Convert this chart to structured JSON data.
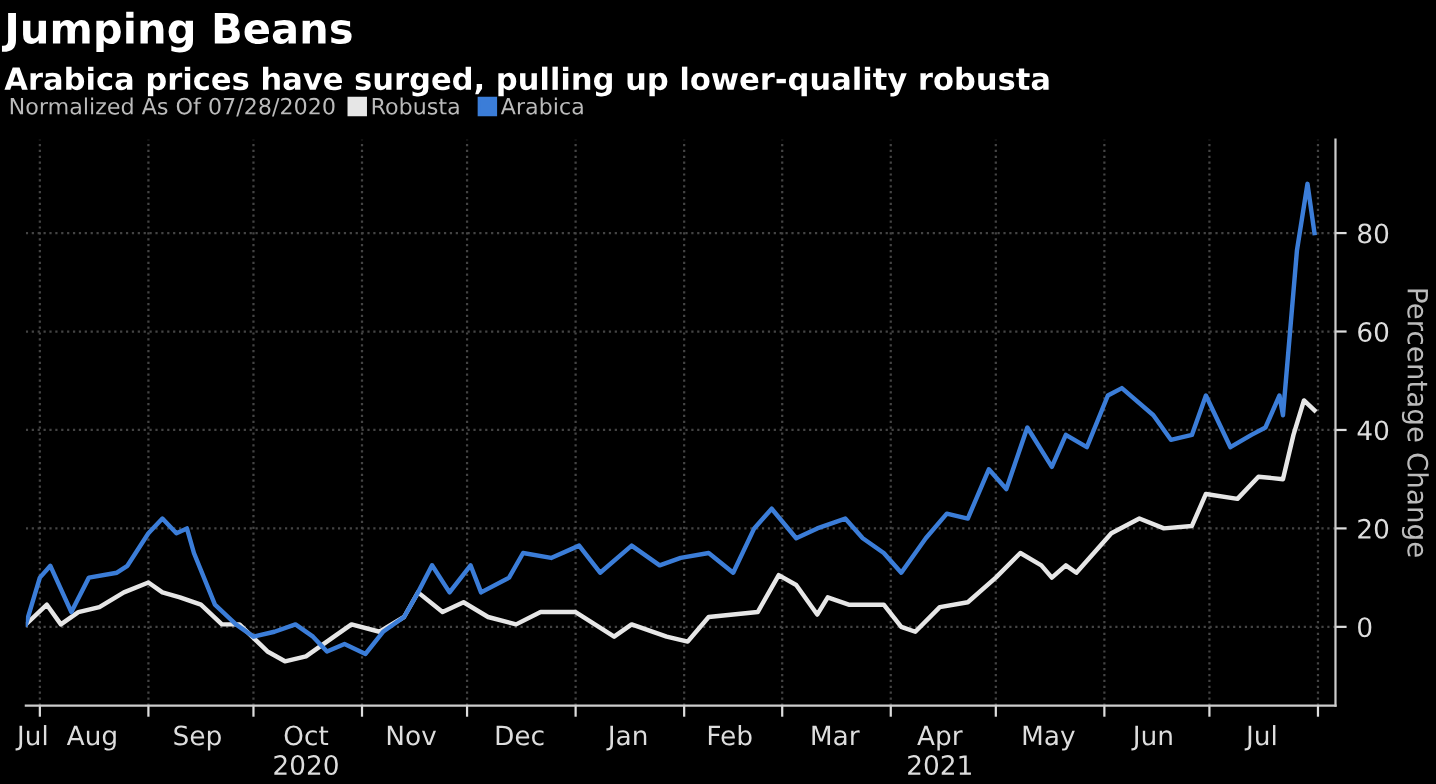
{
  "chart_data": {
    "type": "line",
    "title": "Jumping Beans",
    "subtitle": "Arabica prices have surged, pulling up lower-quality robusta",
    "legend_title": "Normalized As Of 07/28/2020",
    "ylabel": "Percentage Change",
    "legend": "top left",
    "grid": true,
    "line_style": "solid",
    "marker": "none",
    "xlim": [
      "2020-07-28",
      "2021-08-06"
    ],
    "ylim": [
      -16,
      99
    ],
    "yticks": [
      0,
      20,
      40,
      60,
      80
    ],
    "xticks": [
      {
        "value": "2020-07-30",
        "label": "Jul"
      },
      {
        "value": "2020-08-01",
        "label": null
      },
      {
        "value": "2020-08-16",
        "label": "Aug"
      },
      {
        "value": "2020-09-01",
        "label": null
      },
      {
        "value": "2020-09-15",
        "label": "Sep"
      },
      {
        "value": "2020-10-01",
        "label": null
      },
      {
        "value": "2020-10-16",
        "label": "Oct\n2020"
      },
      {
        "value": "2020-11-01",
        "label": null
      },
      {
        "value": "2020-11-15",
        "label": "Nov"
      },
      {
        "value": "2020-12-01",
        "label": null
      },
      {
        "value": "2020-12-16",
        "label": "Dec"
      },
      {
        "value": "2021-01-01",
        "label": null
      },
      {
        "value": "2021-01-16",
        "label": "Jan"
      },
      {
        "value": "2021-02-01",
        "label": null
      },
      {
        "value": "2021-02-14",
        "label": "Feb"
      },
      {
        "value": "2021-03-01",
        "label": null
      },
      {
        "value": "2021-03-16",
        "label": "Mar"
      },
      {
        "value": "2021-04-01",
        "label": null
      },
      {
        "value": "2021-04-15",
        "label": "Apr\n2021"
      },
      {
        "value": "2021-05-01",
        "label": null
      },
      {
        "value": "2021-05-16",
        "label": "May"
      },
      {
        "value": "2021-06-01",
        "label": null
      },
      {
        "value": "2021-06-15",
        "label": "Jun"
      },
      {
        "value": "2021-07-01",
        "label": null
      },
      {
        "value": "2021-07-16",
        "label": "Jul"
      },
      {
        "value": "2021-08-01",
        "label": null
      }
    ],
    "series": [
      {
        "name": "Robusta",
        "color": "#e6e6e6",
        "x": [
          "2020-07-28",
          "2020-08-03",
          "2020-08-07",
          "2020-08-12",
          "2020-08-18",
          "2020-08-25",
          "2020-09-01",
          "2020-09-05",
          "2020-09-10",
          "2020-09-16",
          "2020-09-22",
          "2020-09-27",
          "2020-10-05",
          "2020-10-10",
          "2020-10-16",
          "2020-10-24",
          "2020-10-29",
          "2020-11-06",
          "2020-11-13",
          "2020-11-17",
          "2020-11-24",
          "2020-11-30",
          "2020-12-07",
          "2020-12-15",
          "2020-12-22",
          "2021-01-01",
          "2021-01-12",
          "2021-01-17",
          "2021-01-27",
          "2021-02-02",
          "2021-02-08",
          "2021-02-15",
          "2021-02-22",
          "2021-02-28",
          "2021-03-05",
          "2021-03-11",
          "2021-03-14",
          "2021-03-20",
          "2021-03-30",
          "2021-04-04",
          "2021-04-08",
          "2021-04-15",
          "2021-04-23",
          "2021-05-01",
          "2021-05-08",
          "2021-05-14",
          "2021-05-17",
          "2021-05-21",
          "2021-05-24",
          "2021-06-03",
          "2021-06-11",
          "2021-06-18",
          "2021-06-26",
          "2021-06-30",
          "2021-07-09",
          "2021-07-15",
          "2021-07-22",
          "2021-07-25",
          "2021-07-28",
          "2021-07-31"
        ],
        "values": [
          0.5,
          4.5,
          0.5,
          3,
          4,
          7,
          9,
          7,
          6,
          4.5,
          0.5,
          0.5,
          -5,
          -7,
          -6,
          -2,
          0.5,
          -1,
          2,
          7,
          3,
          5,
          2,
          0.5,
          3,
          3,
          -2,
          0.5,
          -2,
          -3,
          2,
          2.5,
          3,
          10.5,
          8.5,
          2.5,
          6,
          4.5,
          4.5,
          0,
          -1,
          4,
          5,
          10,
          15,
          12.5,
          10,
          12.5,
          11,
          19,
          22,
          20,
          20.5,
          27,
          26,
          30.5,
          30,
          39,
          46,
          44
        ]
      },
      {
        "name": "Arabica",
        "color": "#3b7dd8",
        "x": [
          "2020-07-28",
          "2020-08-01",
          "2020-08-04",
          "2020-08-10",
          "2020-08-15",
          "2020-08-23",
          "2020-08-26",
          "2020-09-01",
          "2020-09-05",
          "2020-09-09",
          "2020-09-12",
          "2020-09-14",
          "2020-09-20",
          "2020-09-26",
          "2020-10-01",
          "2020-10-07",
          "2020-10-13",
          "2020-10-18",
          "2020-10-22",
          "2020-10-27",
          "2020-11-02",
          "2020-11-07",
          "2020-11-13",
          "2020-11-17",
          "2020-11-21",
          "2020-11-26",
          "2020-12-02",
          "2020-12-05",
          "2020-12-13",
          "2020-12-17",
          "2020-12-25",
          "2021-01-02",
          "2021-01-08",
          "2021-01-17",
          "2021-01-25",
          "2021-01-31",
          "2021-02-08",
          "2021-02-15",
          "2021-02-21",
          "2021-02-26",
          "2021-03-05",
          "2021-03-11",
          "2021-03-19",
          "2021-03-24",
          "2021-03-30",
          "2021-04-04",
          "2021-04-11",
          "2021-04-17",
          "2021-04-23",
          "2021-04-29",
          "2021-05-04",
          "2021-05-10",
          "2021-05-17",
          "2021-05-21",
          "2021-05-27",
          "2021-06-02",
          "2021-06-06",
          "2021-06-15",
          "2021-06-20",
          "2021-06-26",
          "2021-06-30",
          "2021-07-07",
          "2021-07-13",
          "2021-07-17",
          "2021-07-21",
          "2021-07-22",
          "2021-07-26",
          "2021-07-29",
          "2021-07-31"
        ],
        "values": [
          0.5,
          10,
          12.4,
          3,
          10,
          11,
          12.4,
          19,
          22,
          19,
          20,
          15,
          4.5,
          0.5,
          -2,
          -1,
          0.5,
          -2,
          -5,
          -3.5,
          -5.5,
          -1,
          2,
          7,
          12.5,
          7,
          12.5,
          7,
          10,
          15,
          14,
          16.5,
          11,
          16.5,
          12.5,
          14,
          15,
          11,
          20,
          24,
          18,
          20,
          22,
          18,
          15,
          11,
          18,
          23,
          22,
          32,
          28,
          40.5,
          32.5,
          39,
          36.5,
          47,
          48.5,
          43,
          38,
          39,
          47,
          36.5,
          39,
          40.5,
          47,
          43,
          76.5,
          90,
          80
        ]
      }
    ]
  }
}
